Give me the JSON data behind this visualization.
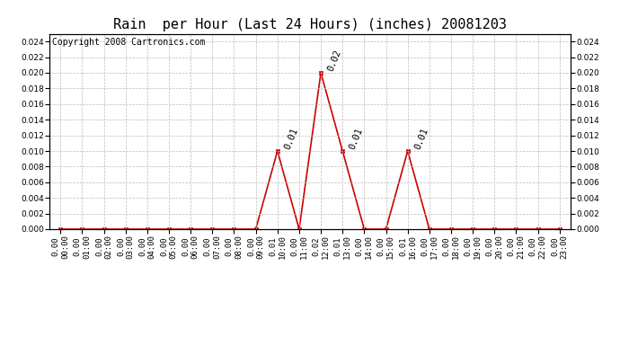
{
  "title": "Rain  per Hour (Last 24 Hours) (inches) 20081203",
  "copyright_text": "Copyright 2008 Cartronics.com",
  "hours": [
    "00:00",
    "01:00",
    "02:00",
    "03:00",
    "04:00",
    "05:00",
    "06:00",
    "07:00",
    "08:00",
    "09:00",
    "10:00",
    "11:00",
    "12:00",
    "13:00",
    "14:00",
    "15:00",
    "16:00",
    "17:00",
    "18:00",
    "19:00",
    "20:00",
    "21:00",
    "22:00",
    "23:00"
  ],
  "values": [
    0.0,
    0.0,
    0.0,
    0.0,
    0.0,
    0.0,
    0.0,
    0.0,
    0.0,
    0.0,
    0.01,
    0.0,
    0.02,
    0.01,
    0.0,
    0.0,
    0.01,
    0.0,
    0.0,
    0.0,
    0.0,
    0.0,
    0.0,
    0.0
  ],
  "ylim": [
    0.0,
    0.025
  ],
  "yticks": [
    0.0,
    0.002,
    0.004,
    0.006,
    0.008,
    0.01,
    0.012,
    0.014,
    0.016,
    0.018,
    0.02,
    0.022,
    0.024
  ],
  "line_color": "#cc0000",
  "marker_color": "#cc0000",
  "grid_color": "#bbbbbb",
  "bg_color": "#ffffff",
  "title_fontsize": 11,
  "copyright_fontsize": 7,
  "tick_fontsize": 6.5,
  "annotation_fontsize": 7.5,
  "annotate_indices": [
    10,
    12,
    13,
    16
  ],
  "annotate_values": [
    0.01,
    0.02,
    0.01,
    0.01
  ]
}
